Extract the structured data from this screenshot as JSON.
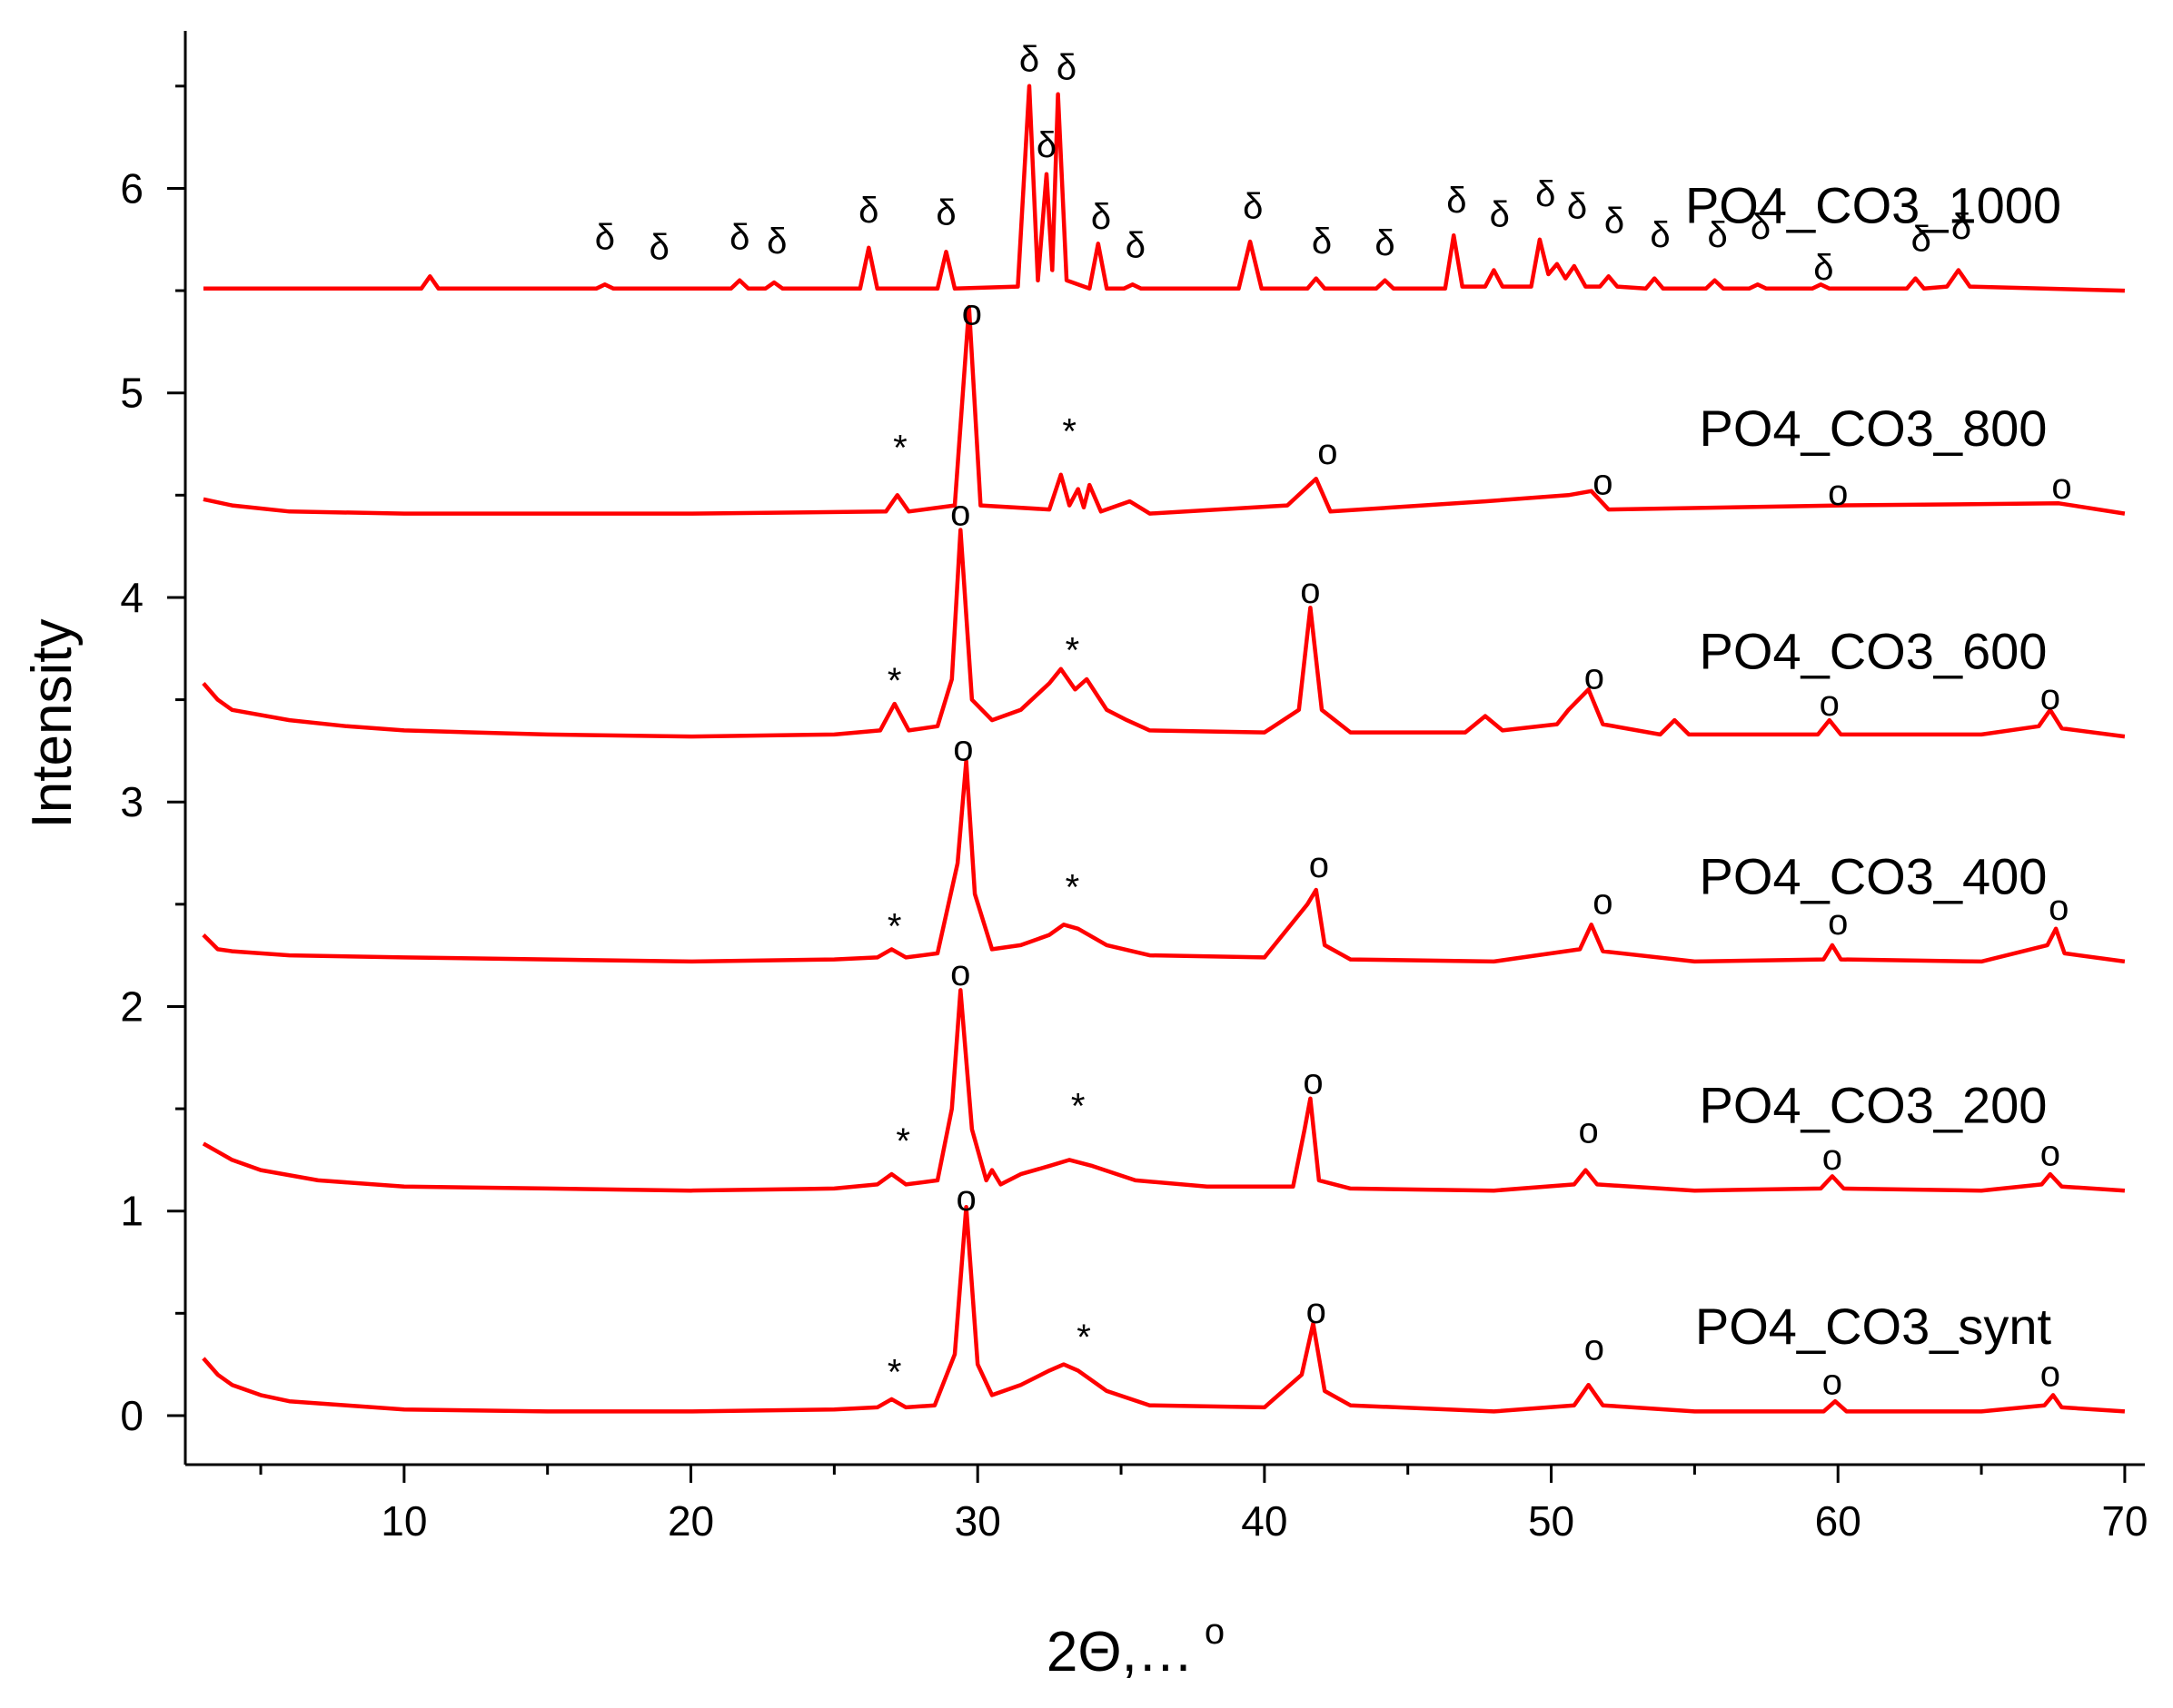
{
  "chart_data": {
    "type": "line",
    "xlabel": "2Θ,…",
    "xlabel_superscript": "o",
    "ylabel": "Intensity",
    "xlim": [
      2.37,
      70.7
    ],
    "ylim": [
      -0.24,
      6.77
    ],
    "xticks": [
      10,
      20,
      30,
      40,
      50,
      60,
      70
    ],
    "xminorticks": [
      5,
      15,
      25,
      35,
      45,
      55,
      65
    ],
    "yticks": [
      0,
      1,
      2,
      3,
      4,
      5,
      6
    ],
    "yminorticks": [
      0.5,
      1.5,
      2.5,
      3.5,
      4.5,
      5.5,
      6.5
    ],
    "series": [
      {
        "name": "PO4_CO3_synt",
        "color": "#ff0000",
        "x": [
          3,
          3.5,
          4,
          5,
          6,
          8,
          10,
          15,
          20,
          25,
          26.5,
          27,
          27.5,
          28.5,
          29.2,
          29.6,
          30,
          30.5,
          31.5,
          32.5,
          33,
          33.5,
          34.5,
          36,
          40,
          41.3,
          41.7,
          42.1,
          43,
          48,
          50.8,
          51.3,
          51.8,
          55,
          59.5,
          59.9,
          60.3,
          65,
          67.2,
          67.5,
          67.8,
          70
        ],
        "values": [
          0.28,
          0.2,
          0.15,
          0.1,
          0.07,
          0.05,
          0.03,
          0.02,
          0.02,
          0.03,
          0.04,
          0.08,
          0.04,
          0.05,
          0.3,
          1.02,
          0.25,
          0.1,
          0.15,
          0.22,
          0.25,
          0.22,
          0.12,
          0.05,
          0.04,
          0.2,
          0.45,
          0.12,
          0.05,
          0.02,
          0.05,
          0.15,
          0.05,
          0.02,
          0.02,
          0.07,
          0.02,
          0.02,
          0.05,
          0.1,
          0.04,
          0.02
        ]
      },
      {
        "name": "PO4_CO3_200",
        "color": "#ff0000",
        "x": [
          3,
          4,
          5,
          7,
          10,
          15,
          20,
          25,
          26.5,
          27,
          27.5,
          28.6,
          29.1,
          29.4,
          29.8,
          30.3,
          30.5,
          30.8,
          31.5,
          32.5,
          33.2,
          34,
          35.5,
          38,
          41,
          41.4,
          41.6,
          41.9,
          43,
          48,
          50.8,
          51.2,
          51.6,
          55,
          59.4,
          59.8,
          60.2,
          65,
          67.1,
          67.4,
          67.8,
          70
        ],
        "values": [
          1.33,
          1.25,
          1.2,
          1.15,
          1.12,
          1.11,
          1.1,
          1.11,
          1.13,
          1.18,
          1.13,
          1.15,
          1.5,
          2.08,
          1.4,
          1.15,
          1.2,
          1.13,
          1.18,
          1.22,
          1.25,
          1.22,
          1.15,
          1.12,
          1.12,
          1.4,
          1.55,
          1.15,
          1.11,
          1.1,
          1.13,
          1.2,
          1.13,
          1.1,
          1.11,
          1.17,
          1.11,
          1.1,
          1.13,
          1.18,
          1.12,
          1.1
        ]
      },
      {
        "name": "PO4_CO3_400",
        "color": "#ff0000",
        "x": [
          3,
          3.5,
          4,
          6,
          10,
          15,
          20,
          25,
          26.5,
          27,
          27.5,
          28.6,
          29.3,
          29.6,
          29.9,
          30.5,
          31.5,
          32.5,
          33,
          33.5,
          34.5,
          36,
          40,
          41.5,
          41.8,
          42.1,
          43,
          48,
          51,
          51.4,
          51.8,
          55,
          59.5,
          59.8,
          60.1,
          65,
          67.3,
          67.6,
          67.9,
          70
        ],
        "values": [
          2.35,
          2.28,
          2.27,
          2.25,
          2.24,
          2.23,
          2.22,
          2.23,
          2.24,
          2.28,
          2.24,
          2.26,
          2.7,
          3.2,
          2.55,
          2.28,
          2.3,
          2.35,
          2.4,
          2.38,
          2.3,
          2.25,
          2.24,
          2.5,
          2.57,
          2.3,
          2.23,
          2.22,
          2.28,
          2.4,
          2.27,
          2.22,
          2.23,
          2.3,
          2.23,
          2.22,
          2.3,
          2.38,
          2.26,
          2.22
        ]
      },
      {
        "name": "PO4_CO3_600",
        "color": "#ff0000",
        "x": [
          3,
          3.5,
          4,
          6,
          8,
          10,
          15,
          20,
          25,
          26.6,
          27.1,
          27.6,
          28.6,
          29.1,
          29.4,
          29.8,
          30.5,
          31.5,
          32.5,
          32.9,
          33.4,
          33.8,
          34.5,
          35.2,
          36,
          40,
          41.2,
          41.6,
          42,
          43,
          47,
          47.7,
          48.3,
          50.2,
          50.6,
          51.3,
          51.8,
          53.8,
          54.3,
          54.8,
          59.3,
          59.7,
          60.1,
          65,
          67,
          67.4,
          67.8,
          70
        ],
        "values": [
          3.58,
          3.5,
          3.45,
          3.4,
          3.37,
          3.35,
          3.33,
          3.32,
          3.33,
          3.35,
          3.48,
          3.35,
          3.37,
          3.6,
          4.33,
          3.5,
          3.4,
          3.45,
          3.58,
          3.65,
          3.55,
          3.6,
          3.45,
          3.4,
          3.35,
          3.34,
          3.45,
          3.95,
          3.45,
          3.34,
          3.34,
          3.42,
          3.35,
          3.38,
          3.45,
          3.55,
          3.38,
          3.33,
          3.4,
          3.33,
          3.33,
          3.4,
          3.33,
          3.33,
          3.37,
          3.45,
          3.36,
          3.32
        ]
      },
      {
        "name": "PO4_CO3_800",
        "color": "#ff0000",
        "x": [
          3,
          4,
          6,
          10,
          20,
          26.8,
          27.2,
          27.6,
          29.2,
          29.7,
          30.1,
          32.5,
          32.9,
          33.2,
          33.5,
          33.7,
          33.9,
          34.3,
          35.3,
          36,
          40.8,
          41.8,
          42.3,
          47.7,
          50.6,
          51.4,
          52,
          60.1,
          67.7,
          70
        ],
        "values": [
          4.48,
          4.45,
          4.42,
          4.41,
          4.41,
          4.42,
          4.5,
          4.42,
          4.45,
          5.42,
          4.45,
          4.43,
          4.6,
          4.45,
          4.53,
          4.44,
          4.55,
          4.42,
          4.47,
          4.41,
          4.45,
          4.58,
          4.42,
          4.47,
          4.5,
          4.52,
          4.43,
          4.45,
          4.46,
          4.41
        ]
      },
      {
        "name": "PO4_CO3_1000",
        "color": "#ff0000",
        "x": [
          3,
          10.6,
          10.9,
          11.2,
          16.7,
          17,
          17.3,
          21.4,
          21.7,
          22,
          22.6,
          22.9,
          23.2,
          25.9,
          26.2,
          26.5,
          28.6,
          28.9,
          29.2,
          31.4,
          31.8,
          32.1,
          32.4,
          32.6,
          32.8,
          33.1,
          33.9,
          34.2,
          34.5,
          35.1,
          35.4,
          35.7,
          39.1,
          39.5,
          39.9,
          41.5,
          41.8,
          42.1,
          43.9,
          44.2,
          44.5,
          46.3,
          46.6,
          46.9,
          47.7,
          48,
          48.3,
          49.3,
          49.6,
          49.9,
          50.2,
          50.5,
          50.8,
          51.2,
          51.7,
          52,
          52.3,
          53.3,
          53.6,
          53.9,
          55.4,
          55.7,
          56,
          56.9,
          57.2,
          57.5,
          59.1,
          59.4,
          59.7,
          62.4,
          62.7,
          63,
          63.8,
          64.2,
          64.6,
          70
        ],
        "values": [
          5.51,
          5.51,
          5.57,
          5.51,
          5.51,
          5.53,
          5.51,
          5.51,
          5.55,
          5.51,
          5.51,
          5.54,
          5.51,
          5.51,
          5.71,
          5.51,
          5.51,
          5.69,
          5.51,
          5.52,
          6.5,
          5.55,
          6.07,
          5.6,
          6.46,
          5.55,
          5.51,
          5.73,
          5.51,
          5.51,
          5.53,
          5.51,
          5.51,
          5.74,
          5.51,
          5.51,
          5.56,
          5.51,
          5.51,
          5.55,
          5.51,
          5.51,
          5.77,
          5.52,
          5.52,
          5.6,
          5.52,
          5.52,
          5.75,
          5.58,
          5.63,
          5.56,
          5.62,
          5.52,
          5.52,
          5.57,
          5.52,
          5.51,
          5.56,
          5.51,
          5.51,
          5.55,
          5.51,
          5.51,
          5.53,
          5.51,
          5.51,
          5.53,
          5.51,
          5.51,
          5.56,
          5.51,
          5.52,
          5.6,
          5.52,
          5.5
        ]
      }
    ],
    "annotations": [
      {
        "text": "δ",
        "x": 17,
        "y": 5.75
      },
      {
        "text": "δ",
        "x": 18.9,
        "y": 5.7
      },
      {
        "text": "δ",
        "x": 21.7,
        "y": 5.75
      },
      {
        "text": "δ",
        "x": 23,
        "y": 5.73
      },
      {
        "text": "δ",
        "x": 26.2,
        "y": 5.88
      },
      {
        "text": "δ",
        "x": 28.9,
        "y": 5.87
      },
      {
        "text": "δ",
        "x": 31.8,
        "y": 6.62
      },
      {
        "text": "δ",
        "x": 32.4,
        "y": 6.2
      },
      {
        "text": "δ",
        "x": 33.1,
        "y": 6.58
      },
      {
        "text": "δ",
        "x": 34.3,
        "y": 5.85
      },
      {
        "text": "δ",
        "x": 35.5,
        "y": 5.71
      },
      {
        "text": "δ",
        "x": 39.6,
        "y": 5.9
      },
      {
        "text": "δ",
        "x": 42,
        "y": 5.73
      },
      {
        "text": "δ",
        "x": 44.2,
        "y": 5.72
      },
      {
        "text": "δ",
        "x": 46.7,
        "y": 5.93
      },
      {
        "text": "δ",
        "x": 48.2,
        "y": 5.86
      },
      {
        "text": "δ",
        "x": 49.8,
        "y": 5.96
      },
      {
        "text": "δ",
        "x": 50.9,
        "y": 5.9
      },
      {
        "text": "δ",
        "x": 52.2,
        "y": 5.83
      },
      {
        "text": "δ",
        "x": 53.8,
        "y": 5.76
      },
      {
        "text": "δ",
        "x": 55.8,
        "y": 5.76
      },
      {
        "text": "δ",
        "x": 57.3,
        "y": 5.8
      },
      {
        "text": "δ",
        "x": 59.5,
        "y": 5.6
      },
      {
        "text": "δ",
        "x": 62.9,
        "y": 5.74
      },
      {
        "text": "δ",
        "x": 64.3,
        "y": 5.8
      },
      {
        "text": "*",
        "x": 27.3,
        "y": 4.72
      },
      {
        "text": "o",
        "x": 29.8,
        "y": 5.38
      },
      {
        "text": "*",
        "x": 33.2,
        "y": 4.8
      },
      {
        "text": "o",
        "x": 42.2,
        "y": 4.7
      },
      {
        "text": "o",
        "x": 51.8,
        "y": 4.55
      },
      {
        "text": "o",
        "x": 60,
        "y": 4.5
      },
      {
        "text": "o",
        "x": 67.8,
        "y": 4.53
      },
      {
        "text": "*",
        "x": 27.1,
        "y": 3.58
      },
      {
        "text": "o",
        "x": 29.4,
        "y": 4.4
      },
      {
        "text": "*",
        "x": 33.3,
        "y": 3.73
      },
      {
        "text": "o",
        "x": 41.6,
        "y": 4.02
      },
      {
        "text": "o",
        "x": 51.5,
        "y": 3.6
      },
      {
        "text": "o",
        "x": 59.7,
        "y": 3.47
      },
      {
        "text": "o",
        "x": 67.4,
        "y": 3.5
      },
      {
        "text": "*",
        "x": 27.1,
        "y": 2.38
      },
      {
        "text": "o",
        "x": 29.5,
        "y": 3.25
      },
      {
        "text": "*",
        "x": 33.3,
        "y": 2.57
      },
      {
        "text": "o",
        "x": 41.9,
        "y": 2.68
      },
      {
        "text": "o",
        "x": 51.8,
        "y": 2.5
      },
      {
        "text": "o",
        "x": 60,
        "y": 2.4
      },
      {
        "text": "o",
        "x": 67.7,
        "y": 2.47
      },
      {
        "text": "*",
        "x": 27.4,
        "y": 1.33
      },
      {
        "text": "o",
        "x": 29.4,
        "y": 2.15
      },
      {
        "text": "*",
        "x": 33.5,
        "y": 1.5
      },
      {
        "text": "o",
        "x": 41.7,
        "y": 1.62
      },
      {
        "text": "o",
        "x": 51.3,
        "y": 1.38
      },
      {
        "text": "o",
        "x": 59.8,
        "y": 1.25
      },
      {
        "text": "o",
        "x": 67.4,
        "y": 1.27
      },
      {
        "text": "*",
        "x": 27.1,
        "y": 0.2
      },
      {
        "text": "o",
        "x": 29.6,
        "y": 1.05
      },
      {
        "text": "*",
        "x": 33.7,
        "y": 0.37
      },
      {
        "text": "o",
        "x": 41.8,
        "y": 0.5
      },
      {
        "text": "o",
        "x": 51.5,
        "y": 0.32
      },
      {
        "text": "o",
        "x": 59.8,
        "y": 0.15
      },
      {
        "text": "o",
        "x": 67.4,
        "y": 0.19
      }
    ]
  }
}
